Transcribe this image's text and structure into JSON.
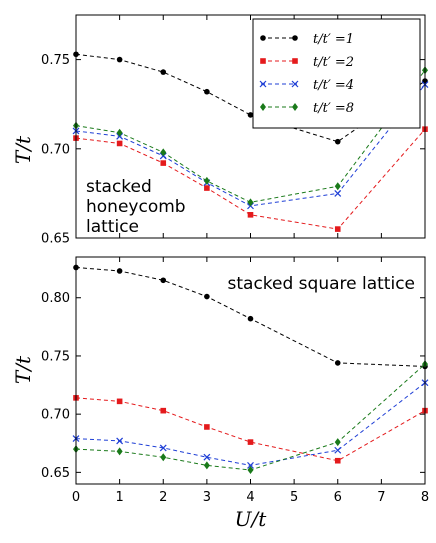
{
  "chart_data": [
    {
      "type": "line",
      "ylabel": "T/t",
      "xlabel": "",
      "ylim": [
        0.65,
        0.775
      ],
      "xlim": [
        0,
        8
      ],
      "yticks": [
        0.65,
        0.7,
        0.75
      ],
      "ytick_labels": [
        "0.65",
        "0.70",
        "0.75"
      ],
      "annotation": [
        "stacked",
        "honeycomb",
        "lattice"
      ],
      "legend": {
        "placement": "top-right"
      },
      "series": [
        {
          "name": "t/t′ =1",
          "color": "#000000",
          "marker": "circle",
          "x": [
            0,
            1,
            2,
            3,
            4,
            6,
            8
          ],
          "y": [
            0.753,
            0.75,
            0.743,
            0.732,
            0.719,
            0.704,
            0.738
          ]
        },
        {
          "name": "t/t′ =2",
          "color": "#e41a1c",
          "marker": "square",
          "x": [
            0,
            1,
            2,
            3,
            4,
            6,
            8
          ],
          "y": [
            0.706,
            0.703,
            0.692,
            0.678,
            0.663,
            0.655,
            0.711
          ]
        },
        {
          "name": "t/t′ =4",
          "color": "#1f3fd6",
          "marker": "x",
          "x": [
            0,
            1,
            2,
            3,
            4,
            6,
            8
          ],
          "y": [
            0.71,
            0.707,
            0.696,
            0.681,
            0.668,
            0.675,
            0.736
          ]
        },
        {
          "name": "t/t′ =8",
          "color": "#1a7a1a",
          "marker": "diamond",
          "x": [
            0,
            1,
            2,
            3,
            4,
            6,
            8
          ],
          "y": [
            0.713,
            0.709,
            0.698,
            0.682,
            0.67,
            0.679,
            0.744
          ]
        }
      ]
    },
    {
      "type": "line",
      "ylabel": "T/t",
      "xlabel": "U/t",
      "ylim": [
        0.64,
        0.835
      ],
      "xlim": [
        0,
        8
      ],
      "xticks": [
        0,
        1,
        2,
        3,
        4,
        5,
        6,
        7,
        8
      ],
      "xtick_labels": [
        "0",
        "1",
        "2",
        "3",
        "4",
        "5",
        "6",
        "7",
        "8"
      ],
      "yticks": [
        0.65,
        0.7,
        0.75,
        0.8
      ],
      "ytick_labels": [
        "0.65",
        "0.70",
        "0.75",
        "0.80"
      ],
      "annotation": [
        "stacked square lattice"
      ],
      "series": [
        {
          "name": "t/t′ =1",
          "color": "#000000",
          "marker": "circle",
          "x": [
            0,
            1,
            2,
            3,
            4,
            6,
            8
          ],
          "y": [
            0.826,
            0.823,
            0.815,
            0.801,
            0.782,
            0.744,
            0.741
          ]
        },
        {
          "name": "t/t′ =2",
          "color": "#e41a1c",
          "marker": "square",
          "x": [
            0,
            1,
            2,
            3,
            4,
            6,
            8
          ],
          "y": [
            0.714,
            0.711,
            0.703,
            0.689,
            0.676,
            0.66,
            0.703
          ]
        },
        {
          "name": "t/t′ =4",
          "color": "#1f3fd6",
          "marker": "x",
          "x": [
            0,
            1,
            2,
            3,
            4,
            6,
            8
          ],
          "y": [
            0.679,
            0.677,
            0.671,
            0.663,
            0.656,
            0.669,
            0.727
          ]
        },
        {
          "name": "t/t′ =8",
          "color": "#1a7a1a",
          "marker": "diamond",
          "x": [
            0,
            1,
            2,
            3,
            4,
            6,
            8
          ],
          "y": [
            0.67,
            0.668,
            0.663,
            0.656,
            0.652,
            0.676,
            0.743
          ]
        }
      ]
    }
  ]
}
